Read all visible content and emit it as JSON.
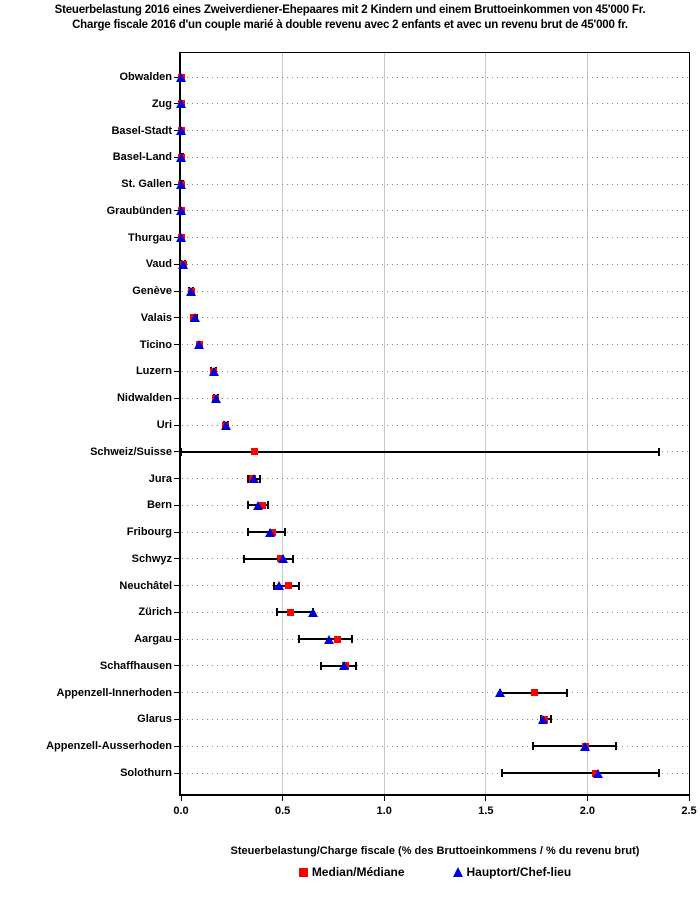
{
  "header": {
    "title_line1": "Steuerbelastung 2016 eines Zweiverdiener-Ehepaares mit 2 Kindern und einem Bruttoeinkommen von 45'000 Fr.",
    "title_line2": "Charge fiscale 2016 d'un couple marié à double revenu avec 2 enfants et avec un revenu brut de 45'000 fr."
  },
  "chart_data": {
    "type": "scatter",
    "orientation": "horizontal",
    "title": "Steuerbelastung 2016 eines Zweiverdiener-Ehepaares mit 2 Kindern und einem Bruttoeinkommen von 45'000 Fr. / Charge fiscale 2016 d'un couple marié à double revenu avec 2 enfants et avec un revenu brut de 45'000 fr.",
    "xlabel": "Steuerbelastung/Charge fiscale (% des Bruttoeinkommens / % du revenu brut)",
    "xlim": [
      0,
      2.5
    ],
    "xtick_values": [
      0,
      0.5,
      1.0,
      1.5,
      2.0,
      2.5
    ],
    "xtick_labels": [
      "0.0",
      "0.5",
      "1.0",
      "1.5",
      "2.0",
      "2.5"
    ],
    "grid": {
      "vertical_gridlines_every": 0.5,
      "row_leader_lines": "dotted"
    },
    "legend": {
      "position": "bottom",
      "items": [
        {
          "label": "Median/Médiane",
          "marker": "red-square"
        },
        {
          "label": "Hauptort/Chef-lieu",
          "marker": "blue-triangle"
        }
      ]
    },
    "rows": [
      {
        "canton": "Obwalden",
        "median": 0.0,
        "hauptort": 0.0,
        "min": 0.0,
        "max": 0.0
      },
      {
        "canton": "Zug",
        "median": 0.0,
        "hauptort": 0.0,
        "min": 0.0,
        "max": 0.01
      },
      {
        "canton": "Basel-Stadt",
        "median": 0.0,
        "hauptort": 0.0,
        "min": 0.0,
        "max": 0.01
      },
      {
        "canton": "Basel-Land",
        "median": 0.0,
        "hauptort": 0.0,
        "min": 0.0,
        "max": 0.01
      },
      {
        "canton": "St. Gallen",
        "median": 0.0,
        "hauptort": 0.0,
        "min": 0.0,
        "max": 0.01
      },
      {
        "canton": "Graubünden",
        "median": 0.0,
        "hauptort": 0.0,
        "min": 0.0,
        "max": 0.01
      },
      {
        "canton": "Thurgau",
        "median": 0.0,
        "hauptort": 0.0,
        "min": 0.0,
        "max": 0.01
      },
      {
        "canton": "Vaud",
        "median": 0.01,
        "hauptort": 0.01,
        "min": 0.0,
        "max": 0.02
      },
      {
        "canton": "Genève",
        "median": 0.05,
        "hauptort": 0.05,
        "min": 0.04,
        "max": 0.06
      },
      {
        "canton": "Valais",
        "median": 0.06,
        "hauptort": 0.07,
        "min": 0.05,
        "max": 0.08
      },
      {
        "canton": "Ticino",
        "median": 0.09,
        "hauptort": 0.09,
        "min": 0.08,
        "max": 0.1
      },
      {
        "canton": "Luzern",
        "median": 0.16,
        "hauptort": 0.16,
        "min": 0.15,
        "max": 0.17
      },
      {
        "canton": "Nidwalden",
        "median": 0.17,
        "hauptort": 0.17,
        "min": 0.16,
        "max": 0.18
      },
      {
        "canton": "Uri",
        "median": 0.22,
        "hauptort": 0.22,
        "min": 0.21,
        "max": 0.23
      },
      {
        "canton": "Schweiz/Suisse",
        "median": 0.36,
        "hauptort": null,
        "min": 0.0,
        "max": 2.35
      },
      {
        "canton": "Jura",
        "median": 0.35,
        "hauptort": 0.36,
        "min": 0.33,
        "max": 0.39
      },
      {
        "canton": "Bern",
        "median": 0.4,
        "hauptort": 0.38,
        "min": 0.33,
        "max": 0.43
      },
      {
        "canton": "Fribourg",
        "median": 0.45,
        "hauptort": 0.44,
        "min": 0.33,
        "max": 0.51
      },
      {
        "canton": "Schwyz",
        "median": 0.49,
        "hauptort": 0.5,
        "min": 0.31,
        "max": 0.55
      },
      {
        "canton": "Neuchâtel",
        "median": 0.53,
        "hauptort": 0.48,
        "min": 0.46,
        "max": 0.58
      },
      {
        "canton": "Zürich",
        "median": 0.54,
        "hauptort": 0.65,
        "min": 0.47,
        "max": 0.65
      },
      {
        "canton": "Aargau",
        "median": 0.77,
        "hauptort": 0.73,
        "min": 0.58,
        "max": 0.84
      },
      {
        "canton": "Schaffhausen",
        "median": 0.81,
        "hauptort": 0.8,
        "min": 0.69,
        "max": 0.86
      },
      {
        "canton": "Appenzell-Innerhoden",
        "median": 1.74,
        "hauptort": 1.57,
        "min": 1.57,
        "max": 1.9
      },
      {
        "canton": "Glarus",
        "median": 1.79,
        "hauptort": 1.78,
        "min": 1.77,
        "max": 1.82
      },
      {
        "canton": "Appenzell-Ausserhoden",
        "median": 1.99,
        "hauptort": 1.99,
        "min": 1.73,
        "max": 2.14
      },
      {
        "canton": "Solothurn",
        "median": 2.04,
        "hauptort": 2.05,
        "min": 1.58,
        "max": 2.35
      }
    ]
  },
  "colors": {
    "median": "#ff0000",
    "hauptort": "#0000d8",
    "range": "#000000",
    "gridline": "#c8c8c8",
    "leader_dots": "#858585",
    "text": "#000000",
    "background": "#ffffff"
  }
}
